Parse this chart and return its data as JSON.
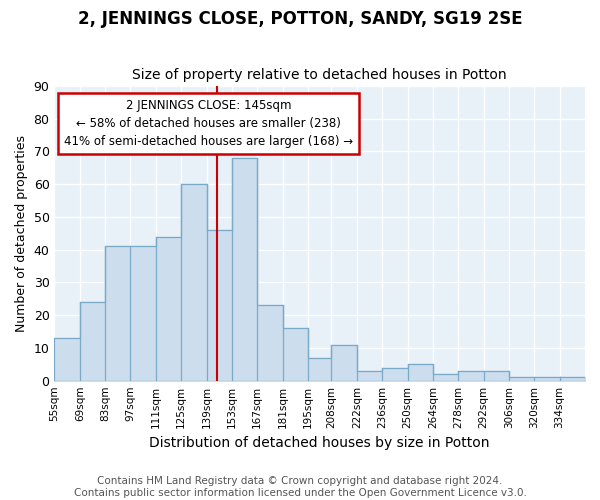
{
  "title": "2, JENNINGS CLOSE, POTTON, SANDY, SG19 2SE",
  "subtitle": "Size of property relative to detached houses in Potton",
  "xlabel": "Distribution of detached houses by size in Potton",
  "ylabel": "Number of detached properties",
  "bin_labels": [
    "55sqm",
    "69sqm",
    "83sqm",
    "97sqm",
    "111sqm",
    "125sqm",
    "139sqm",
    "153sqm",
    "167sqm",
    "181sqm",
    "195sqm",
    "208sqm",
    "222sqm",
    "236sqm",
    "250sqm",
    "264sqm",
    "278sqm",
    "292sqm",
    "306sqm",
    "320sqm",
    "334sqm"
  ],
  "values": [
    13,
    24,
    41,
    41,
    44,
    60,
    46,
    68,
    23,
    16,
    7,
    11,
    3,
    4,
    5,
    2,
    3,
    3,
    1,
    1,
    1
  ],
  "bin_edges": [
    55,
    69,
    83,
    97,
    111,
    125,
    139,
    153,
    167,
    181,
    195,
    208,
    222,
    236,
    250,
    264,
    278,
    292,
    306,
    320,
    334,
    348
  ],
  "bar_color": "#ccdded",
  "bar_edge_color": "#7aaac8",
  "vline_x": 145,
  "vline_color": "#cc0000",
  "annotation_line1": "2 JENNINGS CLOSE: 145sqm",
  "annotation_line2": "← 58% of detached houses are smaller (238)",
  "annotation_line3": "41% of semi-detached houses are larger (168) →",
  "annotation_box_color": "#ffffff",
  "annotation_box_edge_color": "#cc0000",
  "ylim": [
    0,
    90
  ],
  "yticks": [
    0,
    10,
    20,
    30,
    40,
    50,
    60,
    70,
    80,
    90
  ],
  "bg_color": "#dde8f0",
  "plot_bg_color": "#e8f0f8",
  "grid_color": "#ffffff",
  "fig_bg_color": "#ffffff",
  "footer_text": "Contains HM Land Registry data © Crown copyright and database right 2024.\nContains public sector information licensed under the Open Government Licence v3.0.",
  "title_fontsize": 12,
  "subtitle_fontsize": 10,
  "footer_fontsize": 7.5,
  "ylabel_fontsize": 9,
  "xlabel_fontsize": 10
}
